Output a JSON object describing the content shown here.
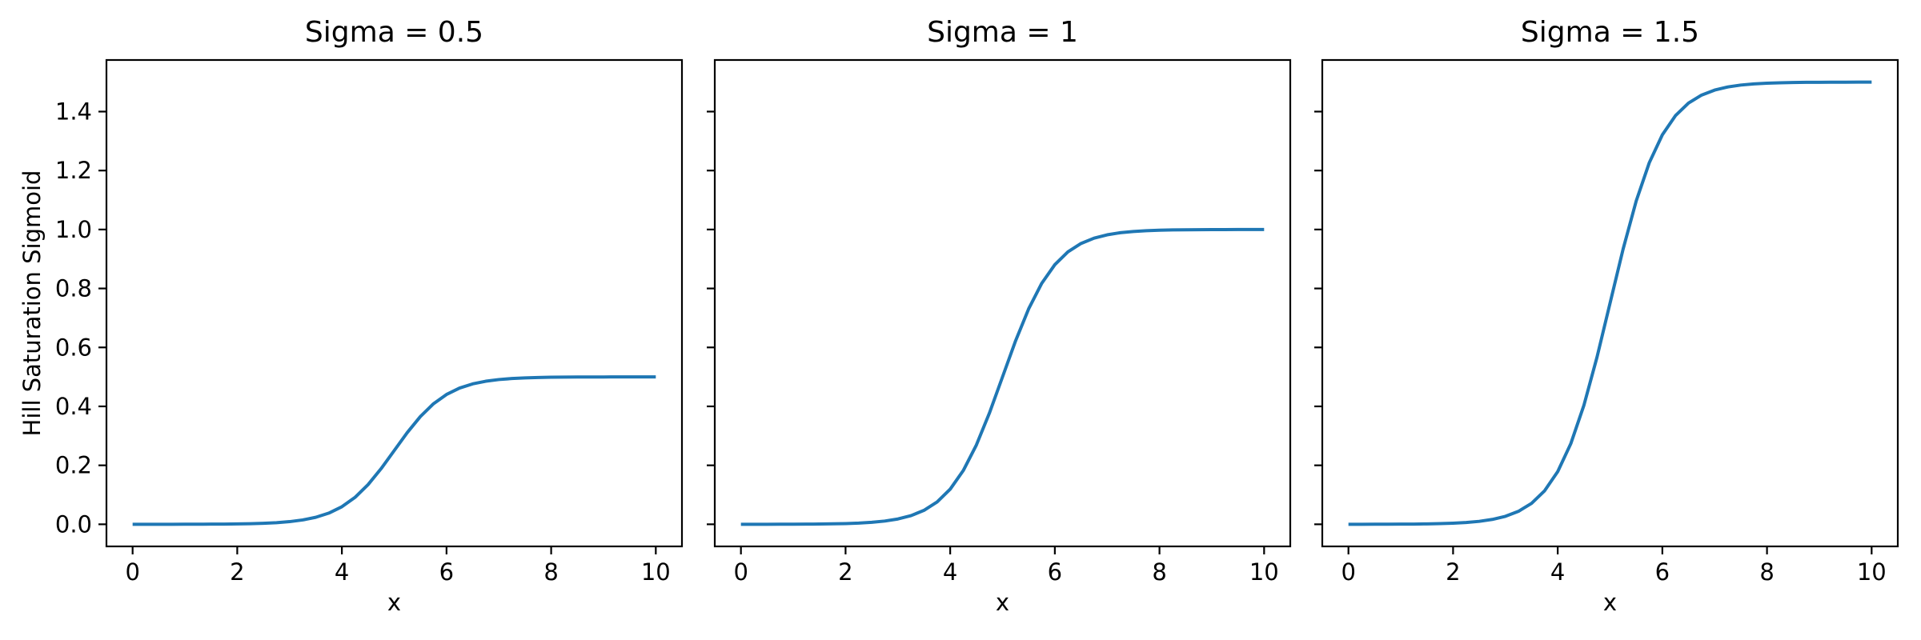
{
  "chart_data": {
    "type": "line",
    "layout": "1x3_shared_y",
    "grid": false,
    "legend": "none",
    "line_color": "#1f77b4",
    "frame_color": "#000000",
    "text_color": "#000000",
    "background_color": "#ffffff",
    "xlim": [
      -0.5,
      10.5
    ],
    "ylim": [
      -0.075,
      1.575
    ],
    "ylabel": "Hill Saturation Sigmoid",
    "x_ticks": {
      "values": [
        0,
        2,
        4,
        6,
        8,
        10
      ],
      "labels": [
        "0",
        "2",
        "4",
        "6",
        "8",
        "10"
      ]
    },
    "y_ticks": {
      "values": [
        0.0,
        0.2,
        0.4,
        0.6,
        0.8,
        1.0,
        1.2,
        1.4
      ],
      "labels": [
        "0.0",
        "0.2",
        "0.4",
        "0.6",
        "0.8",
        "1.0",
        "1.2",
        "1.4"
      ]
    },
    "x": [
      0,
      0.25,
      0.5,
      0.75,
      1,
      1.25,
      1.5,
      1.75,
      2,
      2.25,
      2.5,
      2.75,
      3,
      3.25,
      3.5,
      3.75,
      4,
      4.25,
      4.5,
      4.75,
      5,
      5.25,
      5.5,
      5.75,
      6,
      6.25,
      6.5,
      6.75,
      7,
      7.25,
      7.5,
      7.75,
      8,
      8.25,
      8.5,
      8.75,
      9,
      9.25,
      9.5,
      9.75,
      10
    ],
    "panels": [
      {
        "id": "sigma-0.5",
        "title": "Sigma = 0.5",
        "xlabel": "x",
        "sigma": 0.5,
        "saturation": 0.5,
        "show_y_tick_labels": true,
        "values": [
          0.0,
          0.0,
          0.0001,
          0.0001,
          0.0002,
          0.0003,
          0.0005,
          0.0008,
          0.0012,
          0.002,
          0.0033,
          0.0055,
          0.009,
          0.0147,
          0.0237,
          0.0379,
          0.0596,
          0.0912,
          0.1345,
          0.1888,
          0.25,
          0.3112,
          0.3655,
          0.4088,
          0.4404,
          0.4621,
          0.4763,
          0.4853,
          0.491,
          0.4945,
          0.4967,
          0.4979,
          0.4988,
          0.4993,
          0.4995,
          0.4997,
          0.4998,
          0.4999,
          0.4999,
          0.5,
          0.5
        ]
      },
      {
        "id": "sigma-1",
        "title": "Sigma = 1",
        "xlabel": "x",
        "sigma": 1,
        "saturation": 1.0,
        "show_y_tick_labels": false,
        "values": [
          0.0,
          0.0001,
          0.0001,
          0.0002,
          0.0003,
          0.0006,
          0.0009,
          0.0015,
          0.0025,
          0.0041,
          0.0067,
          0.011,
          0.018,
          0.0293,
          0.0474,
          0.0759,
          0.1192,
          0.1824,
          0.2689,
          0.3775,
          0.5,
          0.6225,
          0.7311,
          0.8176,
          0.8808,
          0.9241,
          0.9526,
          0.9707,
          0.982,
          0.9891,
          0.9933,
          0.9959,
          0.9975,
          0.9985,
          0.9991,
          0.9994,
          0.9997,
          0.9998,
          0.9999,
          0.9999,
          1.0
        ]
      },
      {
        "id": "sigma-1.5",
        "title": "Sigma = 1.5",
        "xlabel": "x",
        "sigma": 1.5,
        "saturation": 1.5,
        "show_y_tick_labels": false,
        "values": [
          0.0001,
          0.0001,
          0.0002,
          0.0003,
          0.0005,
          0.0008,
          0.0014,
          0.0023,
          0.0037,
          0.0061,
          0.01,
          0.0165,
          0.027,
          0.044,
          0.0711,
          0.1138,
          0.1788,
          0.2736,
          0.4034,
          0.5663,
          0.75,
          0.9337,
          1.0966,
          1.2264,
          1.3212,
          1.3862,
          1.4289,
          1.456,
          1.473,
          1.4835,
          1.49,
          1.4939,
          1.4963,
          1.4977,
          1.4986,
          1.4992,
          1.4995,
          1.4997,
          1.4998,
          1.4999,
          1.5
        ]
      }
    ]
  }
}
